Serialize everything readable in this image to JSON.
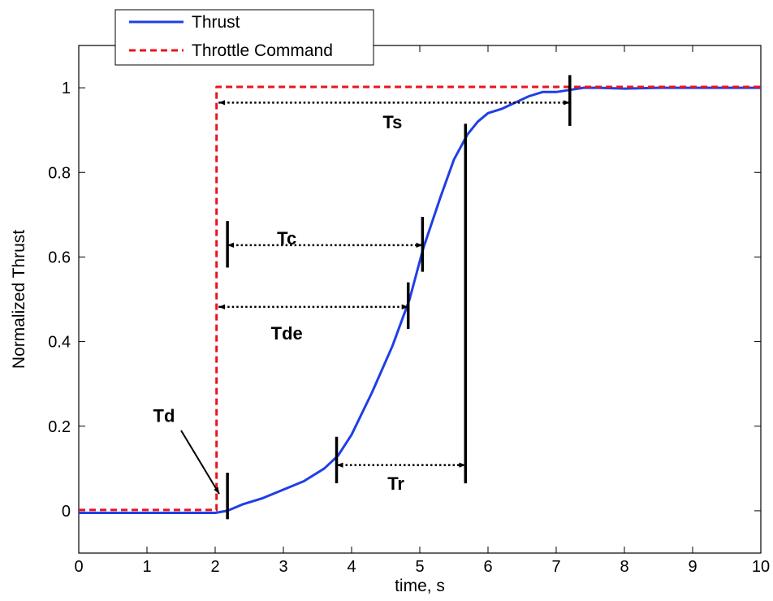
{
  "chart_data": {
    "type": "line",
    "xlabel": "time, s",
    "ylabel": "Normalized Thrust",
    "xlim": [
      0,
      10
    ],
    "ylim": [
      -0.1,
      1.1
    ],
    "xticks": [
      0,
      1,
      2,
      3,
      4,
      5,
      6,
      7,
      8,
      9,
      10
    ],
    "yticks": [
      0,
      0.2,
      0.4,
      0.6,
      0.8,
      1
    ],
    "ytick_labels": [
      "0",
      "0.2",
      "0.4",
      "0.6",
      "0.8",
      "1"
    ],
    "grid": false,
    "legend": "top-left",
    "series": [
      {
        "name": "Thrust",
        "color": "#1f3fe6",
        "style": "solid",
        "x": [
          0,
          2.0,
          2.18,
          2.4,
          2.7,
          3.0,
          3.3,
          3.6,
          3.8,
          4.0,
          4.3,
          4.6,
          4.85,
          5.05,
          5.3,
          5.5,
          5.7,
          5.85,
          6.0,
          6.2,
          6.4,
          6.6,
          6.8,
          7.0,
          7.2,
          7.4,
          7.6,
          8.0,
          8.5,
          9.0,
          10.0
        ],
        "y": [
          -0.005,
          -0.005,
          0.0,
          0.015,
          0.03,
          0.05,
          0.07,
          0.1,
          0.13,
          0.18,
          0.28,
          0.39,
          0.5,
          0.62,
          0.74,
          0.83,
          0.89,
          0.92,
          0.94,
          0.95,
          0.965,
          0.98,
          0.99,
          0.99,
          0.995,
          1.0,
          1.0,
          0.998,
          1.0,
          1.0,
          1.0
        ]
      },
      {
        "name": "Throttle Command",
        "color": "#e8141e",
        "style": "dashed",
        "x": [
          0,
          2.02,
          2.02,
          10
        ],
        "y": [
          0.002,
          0.002,
          1.002,
          1.002
        ]
      }
    ],
    "annotations": [
      {
        "label": "Ts",
        "x1": 2.05,
        "x2": 7.2,
        "y": 0.965,
        "label_x": 4.6,
        "label_y": 0.92
      },
      {
        "label": "Tc",
        "x1": 2.18,
        "x2": 5.04,
        "y": 0.628,
        "label_x": 3.05,
        "label_y": 0.645
      },
      {
        "label": "Tde",
        "x1": 2.05,
        "x2": 4.83,
        "y": 0.482,
        "label_x": 3.05,
        "label_y": 0.42
      },
      {
        "label": "Tr",
        "x1": 3.78,
        "x2": 5.67,
        "y": 0.108,
        "label_x": 4.65,
        "label_y": 0.065
      },
      {
        "label": "Td",
        "text_x": 1.25,
        "text_y": 0.21,
        "arrow_x1": 1.5,
        "arrow_y1": 0.19,
        "arrow_x2": 2.06,
        "arrow_y2": 0.04
      }
    ],
    "markers": [
      {
        "x": 2.18,
        "y1": -0.02,
        "y2": 0.09
      },
      {
        "x": 3.78,
        "y1": 0.065,
        "y2": 0.175
      },
      {
        "x": 5.67,
        "y1": 0.065,
        "y2": 0.915
      },
      {
        "x": 2.18,
        "y1": 0.575,
        "y2": 0.685
      },
      {
        "x": 5.04,
        "y1": 0.565,
        "y2": 0.695
      },
      {
        "x": 4.83,
        "y1": 0.43,
        "y2": 0.54
      },
      {
        "x": 7.2,
        "y1": 0.91,
        "y2": 1.03
      }
    ]
  }
}
